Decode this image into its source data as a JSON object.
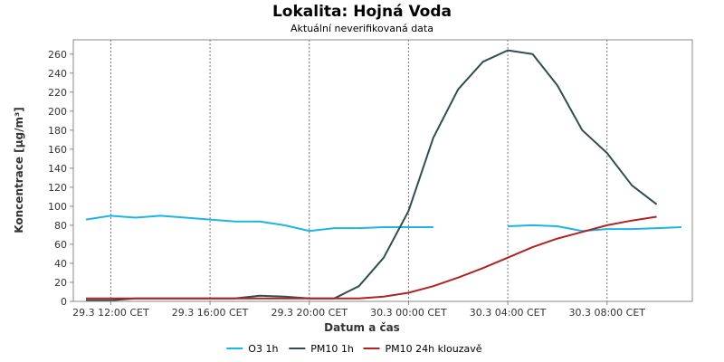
{
  "chart_data": {
    "type": "line",
    "title": "Lokalita: Hojná Voda",
    "subtitle": "Aktuální neverifikovaná data",
    "xlabel": "Datum a čas",
    "ylabel": "Koncentrace [µg/m³]",
    "ylim": [
      0,
      275
    ],
    "yticks": [
      0,
      20,
      40,
      60,
      80,
      100,
      120,
      140,
      160,
      180,
      200,
      220,
      240,
      260
    ],
    "x_range": [
      "29.3 11:00",
      "30.3 11:00"
    ],
    "xticks": [
      {
        "x": "29.3 12:00",
        "label": "29.3 12:00 CET"
      },
      {
        "x": "29.3 16:00",
        "label": "29.3 16:00 CET"
      },
      {
        "x": "29.3 20:00",
        "label": "29.3 20:00 CET"
      },
      {
        "x": "30.3 00:00",
        "label": "30.3 00:00 CET"
      },
      {
        "x": "30.3 04:00",
        "label": "30.3 04:00 CET"
      },
      {
        "x": "30.3 08:00",
        "label": "30.3 08:00 CET"
      }
    ],
    "grid": "vertical dashed at x ticks",
    "legend_position": "bottom",
    "series": [
      {
        "name": "O3 1h",
        "color": "#1eb4e6",
        "x": [
          "29.3 11:00",
          "29.3 12:00",
          "29.3 13:00",
          "29.3 14:00",
          "29.3 15:00",
          "29.3 16:00",
          "29.3 17:00",
          "29.3 18:00",
          "29.3 19:00",
          "29.3 20:00",
          "29.3 21:00",
          "29.3 22:00",
          "29.3 23:00",
          "30.3 00:00",
          "30.3 01:00",
          "30.3 02:00",
          "30.3 03:00",
          "30.3 04:00",
          "30.3 05:00",
          "30.3 06:00",
          "30.3 07:00",
          "30.3 08:00",
          "30.3 09:00",
          "30.3 10:00",
          "30.3 11:00"
        ],
        "y": [
          86,
          90,
          88,
          90,
          88,
          86,
          84,
          84,
          80,
          74,
          77,
          77,
          78,
          78,
          78,
          null,
          null,
          79,
          80,
          79,
          74,
          76,
          76,
          77,
          78
        ]
      },
      {
        "name": "PM10 1h",
        "color": "#2f4f4f",
        "x": [
          "29.3 11:00",
          "29.3 12:00",
          "29.3 13:00",
          "29.3 14:00",
          "29.3 15:00",
          "29.3 16:00",
          "29.3 17:00",
          "29.3 18:00",
          "29.3 19:00",
          "29.3 20:00",
          "29.3 21:00",
          "29.3 22:00",
          "29.3 23:00",
          "30.3 00:00",
          "30.3 01:00",
          "30.3 02:00",
          "30.3 03:00",
          "30.3 04:00",
          "30.3 05:00",
          "30.3 06:00",
          "30.3 07:00",
          "30.3 08:00",
          "30.3 09:00",
          "30.3 10:00",
          "30.3 11:00"
        ],
        "y": [
          1,
          1,
          3,
          3,
          3,
          3,
          3,
          6,
          5,
          3,
          3,
          16,
          46,
          95,
          172,
          223,
          252,
          264,
          260,
          227,
          180,
          156,
          122,
          102,
          null
        ]
      },
      {
        "name": "PM10 24h klouzavě",
        "color": "#b22222",
        "x": [
          "29.3 11:00",
          "29.3 12:00",
          "29.3 13:00",
          "29.3 14:00",
          "29.3 15:00",
          "29.3 16:00",
          "29.3 17:00",
          "29.3 18:00",
          "29.3 19:00",
          "29.3 20:00",
          "29.3 21:00",
          "29.3 22:00",
          "29.3 23:00",
          "30.3 00:00",
          "30.3 01:00",
          "30.3 02:00",
          "30.3 03:00",
          "30.3 04:00",
          "30.3 05:00",
          "30.3 06:00",
          "30.3 07:00",
          "30.3 08:00",
          "30.3 09:00",
          "30.3 10:00",
          "30.3 11:00"
        ],
        "y": [
          3,
          3,
          3,
          3,
          3,
          3,
          3,
          3,
          3,
          3,
          3,
          3,
          5,
          9,
          16,
          25,
          35,
          46,
          57,
          66,
          73,
          80,
          85,
          89,
          null
        ]
      }
    ]
  }
}
